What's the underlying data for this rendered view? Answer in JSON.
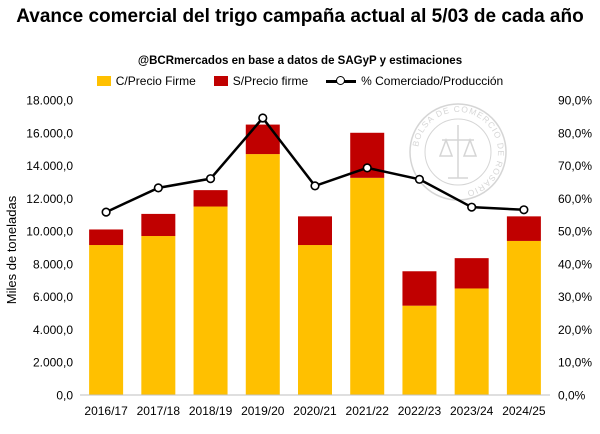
{
  "chart_data": {
    "type": "bar",
    "title": "Avance comercial del trigo campaña actual al 5/03 de cada año",
    "subtitle": "@BCRmercados en base a datos de SAGyP y estimaciones",
    "ylabel": "Miles de toneladas",
    "categories": [
      "2016/17",
      "2017/18",
      "2018/19",
      "2019/20",
      "2020/21",
      "2021/22",
      "2022/23",
      "2023/24",
      "2024/25"
    ],
    "stacked": true,
    "series": [
      {
        "name": "C/Precio Firme",
        "color": "#FFC000",
        "axis": "left",
        "values": [
          9150,
          9700,
          11500,
          14700,
          9150,
          13250,
          5450,
          6500,
          9400
        ]
      },
      {
        "name": "S/Precio firme",
        "color": "#C00000",
        "axis": "left",
        "values": [
          950,
          1350,
          1000,
          1800,
          1750,
          2750,
          2100,
          1850,
          1500
        ]
      },
      {
        "name": "% Comerciado/Producción",
        "type": "line",
        "axis": "right",
        "values": [
          55.8,
          63.2,
          66.0,
          84.5,
          63.8,
          69.3,
          65.8,
          57.3,
          56.5
        ]
      }
    ],
    "ylim": [
      0,
      18000
    ],
    "yticks": [
      "0,0",
      "2.000,0",
      "4.000,0",
      "6.000,0",
      "8.000,0",
      "10.000,0",
      "12.000,0",
      "14.000,0",
      "16.000,0",
      "18.000,0"
    ],
    "y2lim": [
      0,
      90
    ],
    "y2ticks": [
      "0,0%",
      "10,0%",
      "20,0%",
      "30,0%",
      "40,0%",
      "50,0%",
      "60,0%",
      "70,0%",
      "80,0%",
      "90,0%"
    ],
    "legend_position": "top",
    "grid": false,
    "watermark": "BOLSA DE COMERCIO DE ROSARIO"
  }
}
